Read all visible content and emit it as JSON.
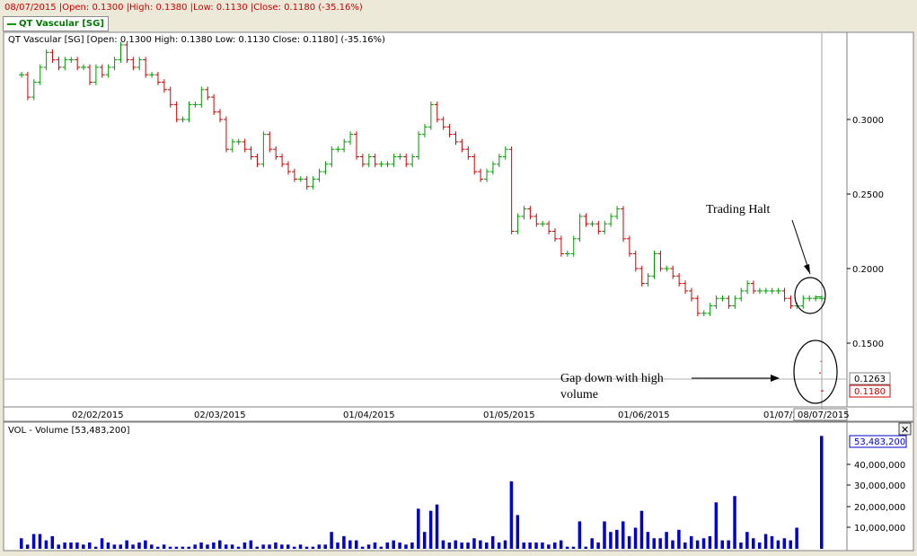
{
  "header": {
    "info_line": "08/07/2015 |Open: 0.1300 |High: 0.1380 |Low: 0.1130 |Close: 0.1180 (-35.16%)",
    "legend_label": "QT Vascular [SG]"
  },
  "price_panel": {
    "caption": "QT Vascular [SG] [Open: 0.1300   High: 0.1380   Low: 0.1130   Close: 0.1180] (-35.16%)",
    "y_ticks": [
      "0.3000",
      "0.2500",
      "0.2000",
      "0.1500"
    ],
    "crosshair_label": "0.1263",
    "last_close_label": "0.1180",
    "x_ticks": [
      "02/02/2015",
      "02/03/2015",
      "01/04/2015",
      "01/05/2015",
      "01/06/2015",
      "01/07/2"
    ],
    "current_date_label": "08/07/2015",
    "annotation_halt": "Trading Halt",
    "annotation_gap_1": "Gap down with high",
    "annotation_gap_2": "volume"
  },
  "volume_panel": {
    "caption": "VOL - Volume [53,483,200]",
    "y_ticks": [
      "40,000,000",
      "30,000,000",
      "20,000,000",
      "10,000,000"
    ],
    "last_value_label": "53,483,200",
    "close_button": "✕"
  },
  "colors": {
    "up": "#009900",
    "down": "#CC0000",
    "volume": "#0000CC",
    "background": "#FFFFFF",
    "window": "#ECE9D8"
  },
  "chart_data": [
    {
      "type": "ohlc",
      "title": "QT Vascular [SG]",
      "x_range": [
        "2015-01-12",
        "2015-07-08"
      ],
      "ylim": [
        0.12,
        0.35
      ],
      "grid": false,
      "series": [
        {
          "name": "QT Vascular [SG]",
          "close": [
            0.33,
            0.315,
            0.325,
            0.335,
            0.345,
            0.34,
            0.335,
            0.34,
            0.34,
            0.335,
            0.335,
            0.325,
            0.335,
            0.33,
            0.335,
            0.34,
            0.35,
            0.34,
            0.335,
            0.34,
            0.33,
            0.33,
            0.325,
            0.32,
            0.31,
            0.3,
            0.3,
            0.31,
            0.31,
            0.32,
            0.315,
            0.305,
            0.3,
            0.28,
            0.285,
            0.285,
            0.28,
            0.275,
            0.27,
            0.29,
            0.28,
            0.275,
            0.27,
            0.265,
            0.26,
            0.26,
            0.255,
            0.26,
            0.265,
            0.27,
            0.28,
            0.28,
            0.285,
            0.29,
            0.275,
            0.27,
            0.275,
            0.27,
            0.27,
            0.27,
            0.275,
            0.275,
            0.27,
            0.275,
            0.29,
            0.295,
            0.31,
            0.3,
            0.295,
            0.29,
            0.285,
            0.28,
            0.275,
            0.265,
            0.26,
            0.265,
            0.27,
            0.275,
            0.28,
            0.225,
            0.235,
            0.24,
            0.235,
            0.23,
            0.23,
            0.225,
            0.22,
            0.21,
            0.21,
            0.22,
            0.235,
            0.23,
            0.23,
            0.225,
            0.23,
            0.235,
            0.24,
            0.22,
            0.21,
            0.2,
            0.19,
            0.195,
            0.21,
            0.2,
            0.2,
            0.195,
            0.19,
            0.185,
            0.18,
            0.17,
            0.17,
            0.175,
            0.18,
            0.18,
            0.175,
            0.18,
            0.185,
            0.19,
            0.185,
            0.185,
            0.185,
            0.185,
            0.185,
            0.18,
            0.175,
            0.175,
            0.18,
            0.18,
            0.18,
            0.18
          ]
        }
      ],
      "last_bar": {
        "date": "08/07/2015",
        "open": 0.13,
        "high": 0.138,
        "low": 0.113,
        "close": 0.118,
        "change_pct": -35.16
      }
    },
    {
      "type": "bar",
      "title": "VOL - Volume",
      "ylim": [
        0,
        55000000
      ],
      "values": [
        5.0,
        2.0,
        7.0,
        7.0,
        4.0,
        6.0,
        2.0,
        3.0,
        3.0,
        3.0,
        2.0,
        3.0,
        1.0,
        5.0,
        3.0,
        2.0,
        2.0,
        4.0,
        2.0,
        3.0,
        4.0,
        2.0,
        1.0,
        2.0,
        1.0,
        1.0,
        1.0,
        1.0,
        2.0,
        3.0,
        2.0,
        3.0,
        4.0,
        2.0,
        2.0,
        1.0,
        3.0,
        4.0,
        1.0,
        2.0,
        2.0,
        3.0,
        2.0,
        2.0,
        1.0,
        2.0,
        1.0,
        1.0,
        2.0,
        2.0,
        8.0,
        3.0,
        6.0,
        4.0,
        4.0,
        1.0,
        2.0,
        3.0,
        1.0,
        3.0,
        4.0,
        3.0,
        2.0,
        3.0,
        19.0,
        8.0,
        18.0,
        21.0,
        4.0,
        3.0,
        4.0,
        3.0,
        3.0,
        5.0,
        4.0,
        3.0,
        6.0,
        3.0,
        4.0,
        32.0,
        16.0,
        3.0,
        3.0,
        3.0,
        3.0,
        2.0,
        3.0,
        4.0,
        1.0,
        1.0,
        13.0,
        1.0,
        5.0,
        3.0,
        13.0,
        8.0,
        9.0,
        13.0,
        6.0,
        10.0,
        18.0,
        8.0,
        5.0,
        5.0,
        8.0,
        4.0,
        9.0,
        3.0,
        6.0,
        4.0,
        5.0,
        6.0,
        22.0,
        4.0,
        4.0,
        25.0,
        3.0,
        8.0,
        5.0,
        3.0,
        7.0,
        6.0,
        4.0,
        5.0,
        4.0,
        10.0,
        0.0,
        0.0,
        0.0,
        53.4832
      ],
      "value_unit": "million shares",
      "last_value": 53483200
    }
  ]
}
